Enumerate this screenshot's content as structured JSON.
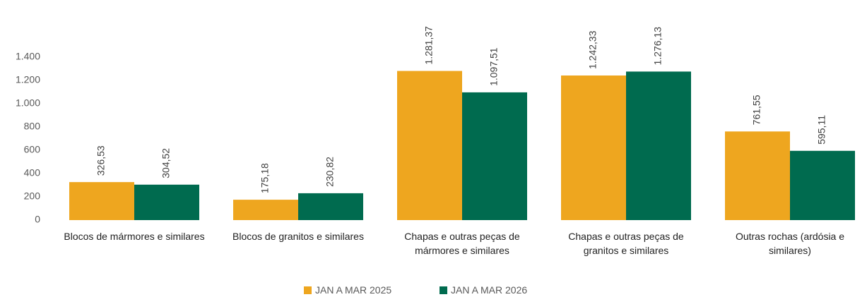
{
  "chart_data": {
    "type": "bar",
    "categories": [
      "Blocos de mármores e similares",
      "Blocos de granitos e similares",
      "Chapas e outras peças de mármores e similares",
      "Chapas e outras peças de granitos e similares",
      "Outras rochas (ardósia e similares)"
    ],
    "series": [
      {
        "name": "JAN A MAR 2025",
        "color": "#EEA61F",
        "values": [
          326.53,
          175.18,
          1281.37,
          1242.33,
          761.55
        ],
        "value_labels": [
          "326,53",
          "175,18",
          "1.281,37",
          "1.242,33",
          "761,55"
        ]
      },
      {
        "name": "JAN A MAR 2026",
        "color": "#006B4F",
        "values": [
          304.52,
          230.82,
          1097.51,
          1276.13,
          595.11
        ],
        "value_labels": [
          "304,52",
          "230,82",
          "1.097,51",
          "1.276,13",
          "595,11"
        ]
      }
    ],
    "ylim": [
      0,
      1400
    ],
    "yticks": [
      0,
      200,
      400,
      600,
      800,
      {
        "value": 1000,
        "label": "1.000"
      },
      {
        "value": 1200,
        "label": "1.200"
      },
      {
        "value": 1400,
        "label": "1.400"
      }
    ],
    "legend": "bottom"
  }
}
